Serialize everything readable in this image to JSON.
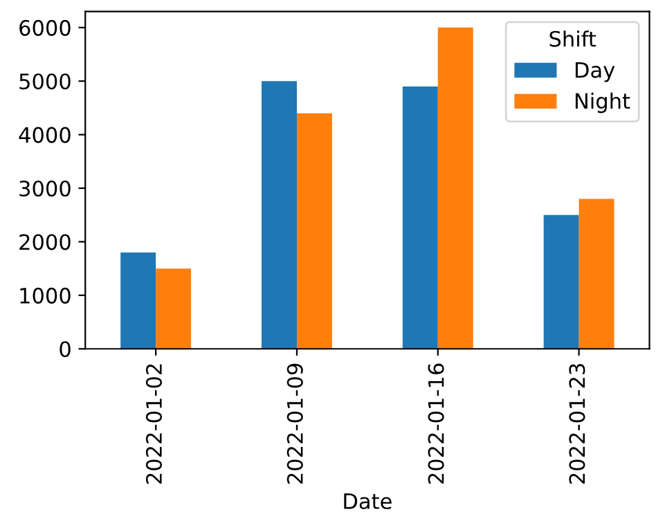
{
  "chart_data": {
    "type": "bar",
    "xlabel": "Date",
    "legend_title": "Shift",
    "legend": "top right",
    "grid": false,
    "categories": [
      "2022-01-02",
      "2022-01-09",
      "2022-01-16",
      "2022-01-23"
    ],
    "series": [
      {
        "name": "Day",
        "color": "#1f77b4",
        "values": [
          1800,
          5000,
          4900,
          2500
        ]
      },
      {
        "name": "Night",
        "color": "#ff7f0e",
        "values": [
          1500,
          4400,
          6000,
          2800
        ]
      }
    ],
    "ylim": [
      0,
      6300
    ],
    "yticks": [
      0,
      1000,
      2000,
      3000,
      4000,
      5000,
      6000
    ]
  }
}
